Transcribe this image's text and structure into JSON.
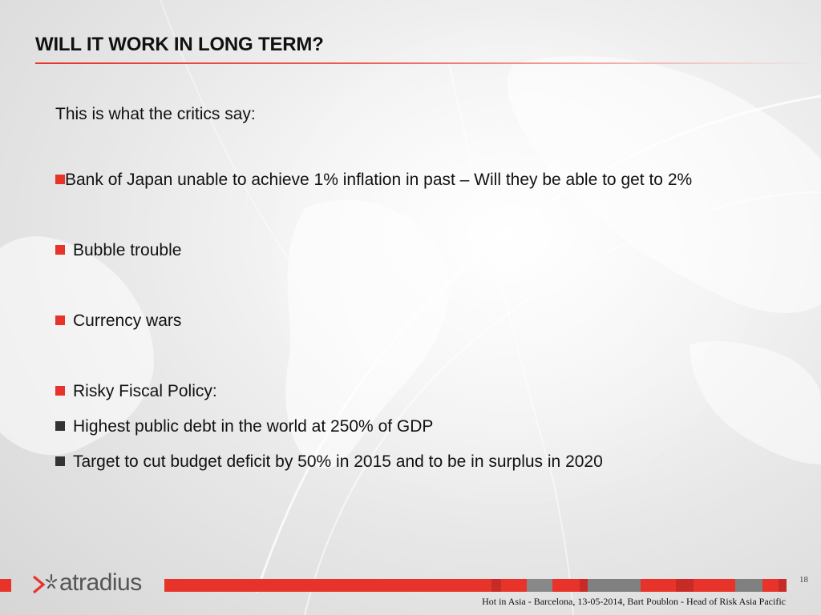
{
  "slide": {
    "title": "WILL IT WORK IN LONG TERM?",
    "intro": "This is what the critics say:",
    "items": [
      {
        "text": "Bank of Japan unable to achieve 1% inflation in past – Will they be able to get to 2%"
      },
      {
        "text": "Bubble trouble"
      },
      {
        "text": "Currency wars"
      },
      {
        "text": "Risky Fiscal Policy:"
      }
    ],
    "subitems": [
      {
        "text": "Highest public debt in the world at 250% of GDP"
      },
      {
        "text": "Target to cut budget deficit by 50% in 2015 and to be in surplus in 2020"
      }
    ]
  },
  "footer": {
    "logo_text": "atradius",
    "page_number": "18",
    "caption": "Hot in Asia - Barcelona, 13-05-2014, Bart Poublon - Head of Risk Asia Pacific"
  },
  "colors": {
    "accent_red": "#e8332a",
    "bullet_dark": "#333333",
    "bar_gray": "#808080",
    "bar_dark_red": "#c82b25",
    "text": "#111111"
  },
  "icons": {
    "logo_mark": "atradius-arrow-star-logo",
    "bullet_red": "square-bullet",
    "bullet_dark": "square-bullet"
  }
}
